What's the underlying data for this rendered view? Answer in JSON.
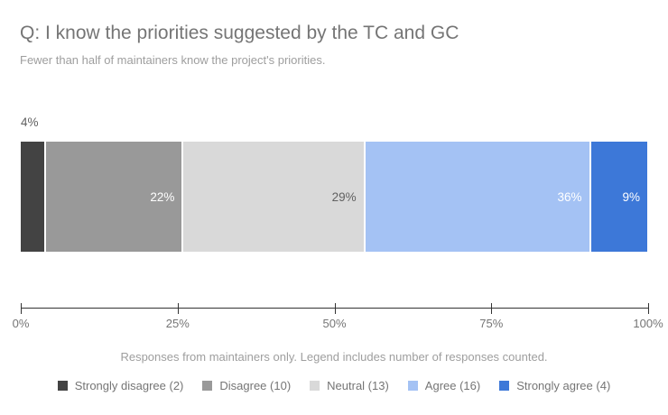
{
  "chart_data": {
    "type": "bar",
    "stacked": true,
    "orientation": "horizontal",
    "title": "Q: I know the priorities suggested by the TC and GC",
    "subtitle": "Fewer than half of maintainers know the project's priorities.",
    "footnote": "Responses from maintainers only. Legend includes number of responses counted.",
    "categories": [
      "Strongly disagree",
      "Disagree",
      "Neutral",
      "Agree",
      "Strongly agree"
    ],
    "series": [
      {
        "name": "Strongly disagree",
        "count": 2,
        "percent": 4,
        "label": "4%",
        "color": "#434343",
        "label_color": "#616161",
        "label_inside": false,
        "legend_label": "Strongly disagree (2)"
      },
      {
        "name": "Disagree",
        "count": 10,
        "percent": 22,
        "label": "22%",
        "color": "#999999",
        "label_color": "#ffffff",
        "label_inside": true,
        "legend_label": "Disagree (10)"
      },
      {
        "name": "Neutral",
        "count": 13,
        "percent": 29,
        "label": "29%",
        "color": "#d9d9d9",
        "label_color": "#616161",
        "label_inside": true,
        "legend_label": "Neutral (13)"
      },
      {
        "name": "Agree",
        "count": 16,
        "percent": 36,
        "label": "36%",
        "color": "#a4c2f4",
        "label_color": "#ffffff",
        "label_inside": true,
        "legend_label": "Agree (16)"
      },
      {
        "name": "Strongly agree",
        "count": 4,
        "percent": 9,
        "label": "9%",
        "color": "#3d78d8",
        "label_color": "#ffffff",
        "label_inside": true,
        "legend_label": "Strongly agree (4)"
      }
    ],
    "x_ticks": [
      "0%",
      "25%",
      "50%",
      "75%",
      "100%"
    ],
    "xlim": [
      0,
      100
    ],
    "grid": false,
    "legend_position": "bottom",
    "axis_color": "#333333",
    "text_colors": {
      "title": "#757575",
      "subtitle": "#9e9e9e",
      "tick": "#757575",
      "footnote": "#9e9e9e",
      "legend": "#757575"
    }
  }
}
